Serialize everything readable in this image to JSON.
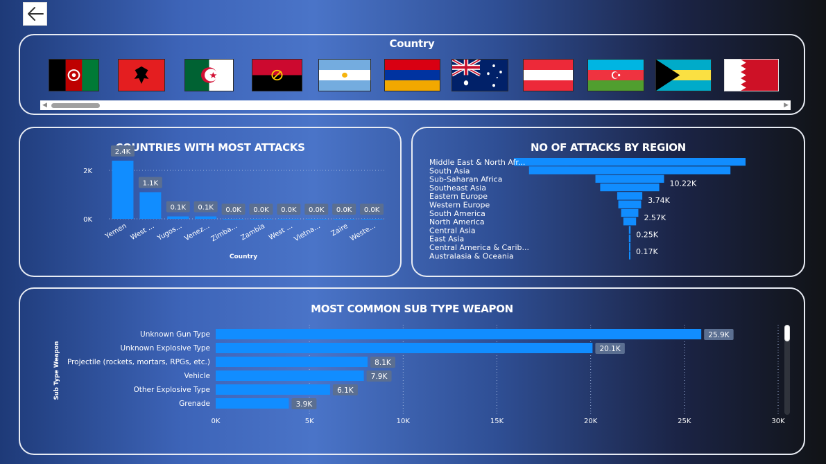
{
  "nav": {
    "back_icon": "arrow-left-icon"
  },
  "slicer": {
    "title": "Country",
    "flags": [
      {
        "country": "Afghanistan",
        "icon": "flag-afghanistan-icon"
      },
      {
        "country": "Albania",
        "icon": "flag-albania-icon"
      },
      {
        "country": "Algeria",
        "icon": "flag-algeria-icon"
      },
      {
        "country": "Angola",
        "icon": "flag-angola-icon"
      },
      {
        "country": "Argentina",
        "icon": "flag-argentina-icon"
      },
      {
        "country": "Armenia",
        "icon": "flag-armenia-icon"
      },
      {
        "country": "Australia",
        "icon": "flag-australia-icon"
      },
      {
        "country": "Austria",
        "icon": "flag-austria-icon"
      },
      {
        "country": "Azerbaijan",
        "icon": "flag-azerbaijan-icon"
      },
      {
        "country": "Bahamas",
        "icon": "flag-bahamas-icon"
      },
      {
        "country": "Bahrain",
        "icon": "flag-bahrain-icon"
      }
    ],
    "scroll_left_icon": "scroll-left-icon",
    "scroll_right_icon": "scroll-right-icon"
  },
  "colors": {
    "bar": "#118dff",
    "label_bg": "#5b6f91",
    "gridline": "#9fb4dd"
  },
  "chart_data": [
    {
      "type": "bar",
      "title": "COUNTRIES WITH MOST ATTACKS",
      "xlabel": "Country",
      "ylabel": "",
      "categories": [
        "Yemen",
        "West ...",
        "Yugos...",
        "Venez...",
        "Zimba...",
        "Zambia",
        "West ...",
        "Vietna...",
        "Zaire",
        "Weste..."
      ],
      "values": [
        2400,
        1100,
        100,
        100,
        0,
        0,
        0,
        0,
        0,
        0
      ],
      "data_labels": [
        "2.4K",
        "1.1K",
        "0.1K",
        "0.1K",
        "0.0K",
        "0.0K",
        "0.0K",
        "0.0K",
        "0.0K",
        "0.0K"
      ],
      "yticks": [
        "0K",
        "2K"
      ],
      "ytick_values": [
        0,
        2000
      ],
      "ylim": [
        0,
        2600
      ],
      "grid": true
    },
    {
      "type": "bar",
      "orientation": "horizontal-centered",
      "title": "NO OF ATTACKS BY REGION",
      "categories": [
        "Middle East & North Afr...",
        "South Asia",
        "Sub-Saharan Africa",
        "Southeast Asia",
        "Eastern Europe",
        "Western Europe",
        "South America",
        "North America",
        "Central Asia",
        "East Asia",
        "Central America & Carib...",
        "Australasia & Oceania"
      ],
      "values": [
        34500,
        30000,
        10220,
        8800,
        3740,
        3400,
        2570,
        1900,
        250,
        250,
        170,
        80
      ],
      "data_labels": [
        "",
        "",
        "10.22K",
        "",
        "3.74K",
        "",
        "2.57K",
        "",
        "0.25K",
        "",
        "0.17K",
        ""
      ]
    },
    {
      "type": "bar",
      "orientation": "horizontal",
      "title": "MOST COMMON SUB TYPE WEAPON",
      "ylabel": "Sub Type Weapon",
      "categories": [
        "Unknown Gun Type",
        "Unknown Explosive Type",
        "Projectile (rockets, mortars, RPGs, etc.)",
        "Vehicle",
        "Other Explosive Type",
        "Grenade"
      ],
      "values": [
        25900,
        20100,
        8100,
        7900,
        6100,
        3900
      ],
      "data_labels": [
        "25.9K",
        "20.1K",
        "8.1K",
        "7.9K",
        "6.1K",
        "3.9K"
      ],
      "xticks": [
        "0K",
        "5K",
        "10K",
        "15K",
        "20K",
        "25K",
        "30K"
      ],
      "xtick_values": [
        0,
        5000,
        10000,
        15000,
        20000,
        25000,
        30000
      ],
      "xlim": [
        0,
        30000
      ],
      "grid": true
    }
  ]
}
